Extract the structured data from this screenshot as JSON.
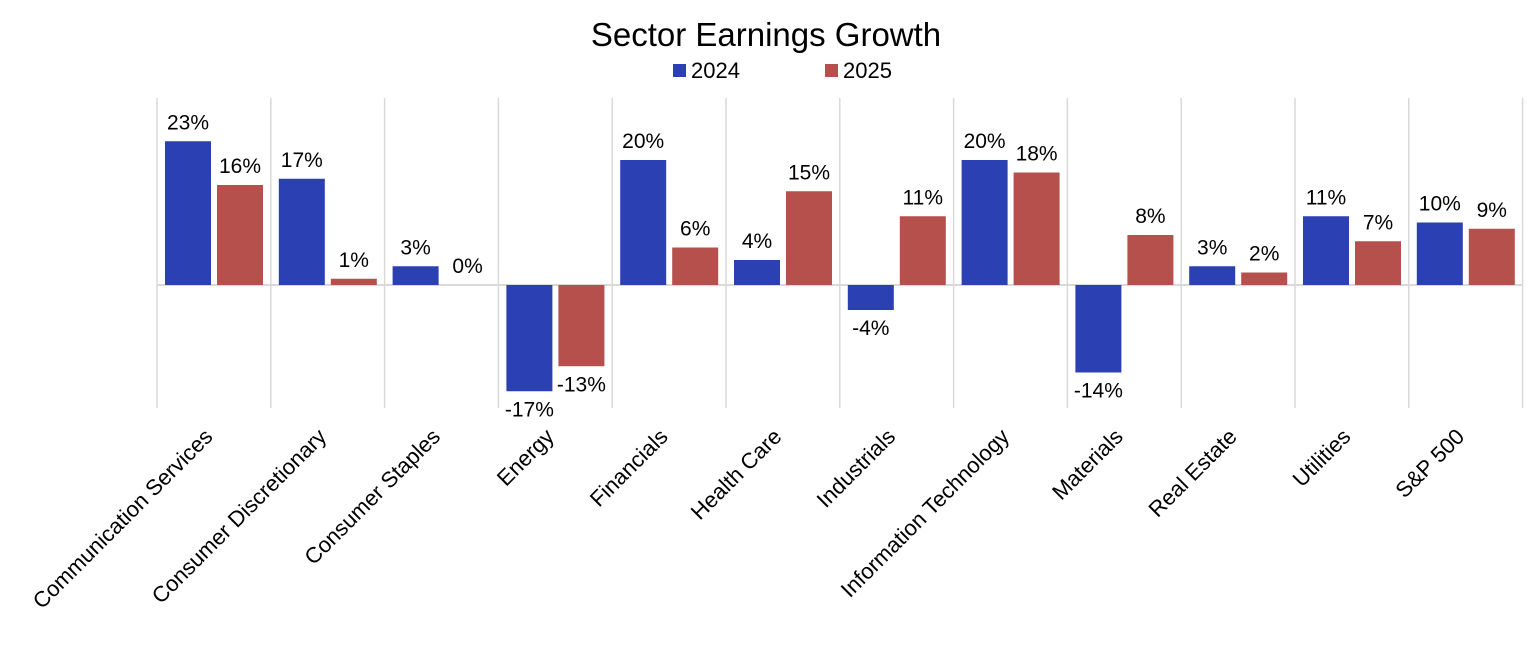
{
  "chart_data": {
    "type": "bar",
    "title": "Sector Earnings Growth",
    "xlabel": "",
    "ylabel": "",
    "categories": [
      "Communication Services",
      "Consumer Discretionary",
      "Consumer Staples",
      "Energy",
      "Financials",
      "Health Care",
      "Industrials",
      "Information Technology",
      "Materials",
      "Real Estate",
      "Utilities",
      "S&P 500"
    ],
    "series": [
      {
        "name": "2024",
        "color": "#2b40b2",
        "values": [
          23,
          17,
          3,
          -17,
          20,
          4,
          -4,
          20,
          -14,
          3,
          11,
          10
        ],
        "labels": [
          "23%",
          "17%",
          "3%",
          "-17%",
          "20%",
          "4%",
          "-4%",
          "20%",
          "-14%",
          "3%",
          "11%",
          "10%"
        ]
      },
      {
        "name": "2025",
        "color": "#b5504c",
        "values": [
          16,
          1,
          0,
          -13,
          6,
          15,
          11,
          18,
          8,
          2,
          7,
          9
        ],
        "labels": [
          "16%",
          "1%",
          "0%",
          "-13%",
          "6%",
          "15%",
          "11%",
          "18%",
          "8%",
          "2%",
          "7%",
          "9%"
        ]
      }
    ],
    "ylim": [
      -20,
      30
    ],
    "grid": "vertical category separators",
    "legend": "top-center",
    "axis_color": "#d9d9d9"
  }
}
